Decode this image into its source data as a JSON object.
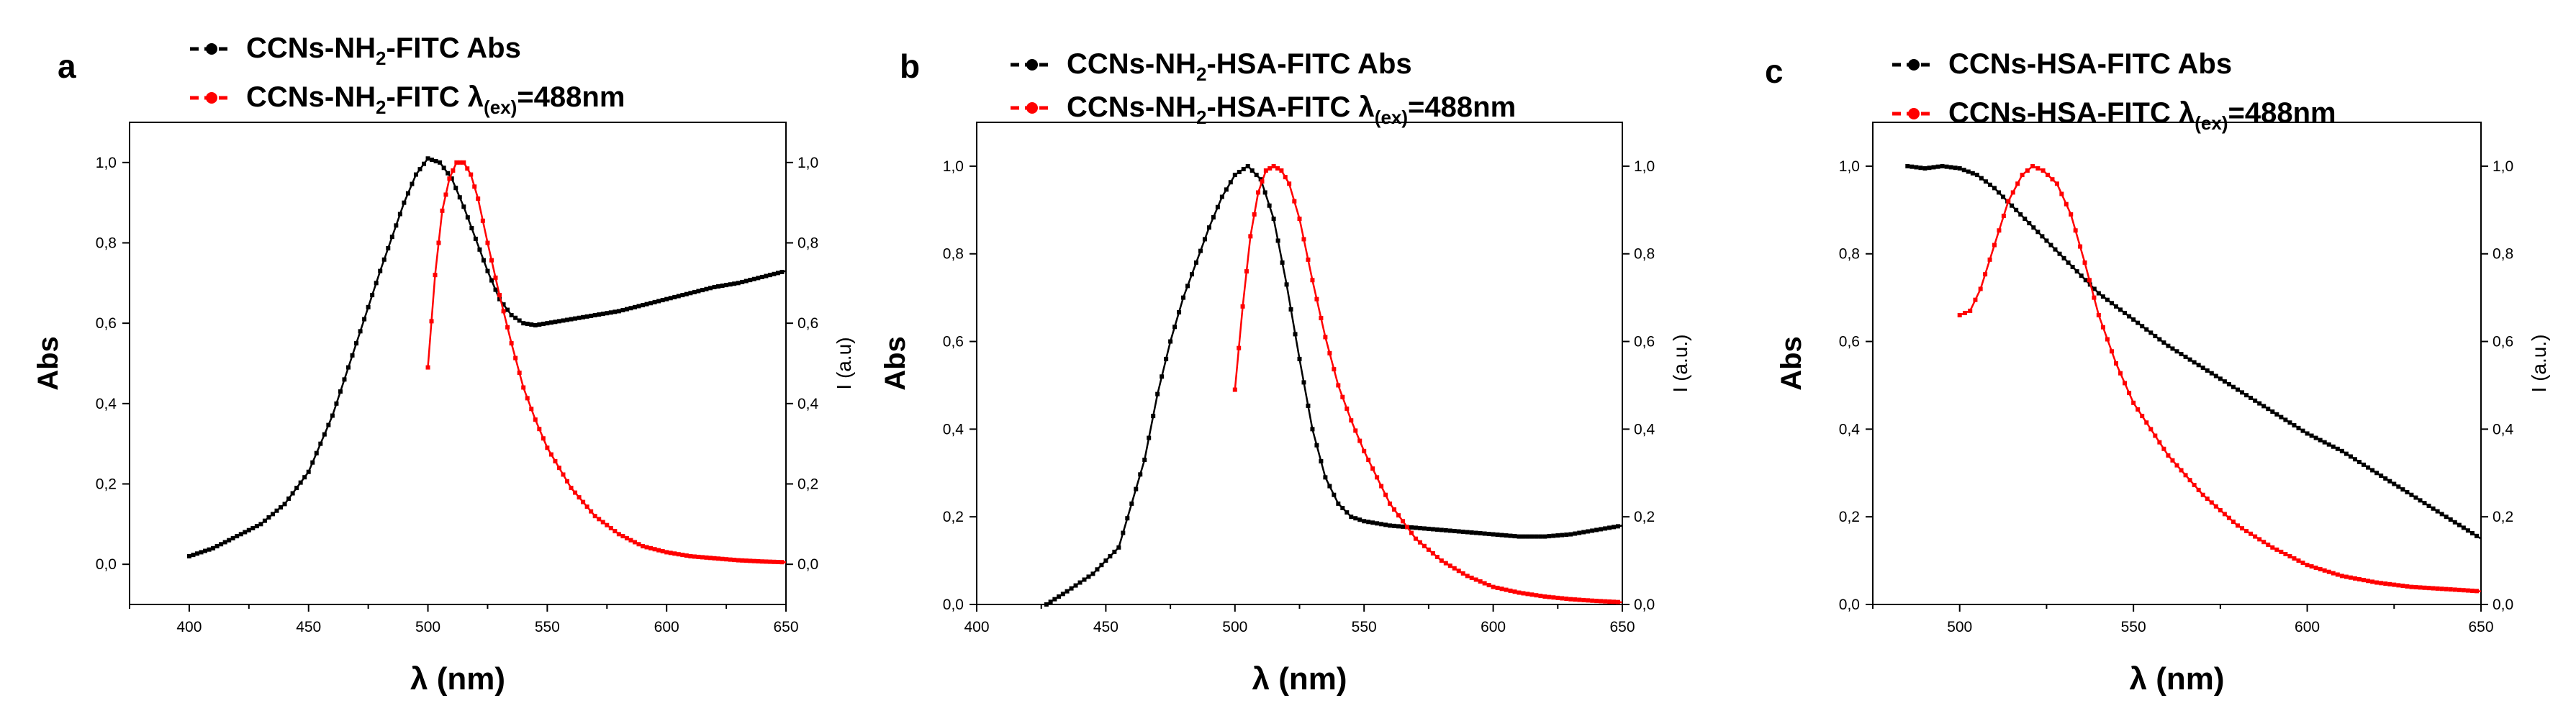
{
  "chart_data": [
    {
      "panel": "a",
      "type": "line",
      "xlabel": "λ (nm)",
      "ylabel": "Abs",
      "y2label": "I (a.u)",
      "xlim": [
        375,
        650
      ],
      "ylim": [
        -0.1,
        1.1
      ],
      "y2lim": [
        -0.1,
        1.1
      ],
      "xticks": [
        400,
        450,
        500,
        550,
        600,
        650
      ],
      "yticks": [
        "0,0",
        "0,2",
        "0,4",
        "0,6",
        "0,8",
        "1,0"
      ],
      "y2ticks": [
        "0,0",
        "0,2",
        "0,4",
        "0,6",
        "0,8",
        "1,0"
      ],
      "series": [
        {
          "name": "CCNs-NH2-FITC Abs",
          "label_main": "CCNs-NH",
          "label_sub": "2",
          "label_rest": "-FITC Abs",
          "color": "#000000",
          "x": [
            400,
            410,
            420,
            430,
            440,
            450,
            460,
            470,
            480,
            490,
            495,
            500,
            505,
            510,
            515,
            520,
            525,
            530,
            535,
            540,
            545,
            550,
            560,
            570,
            580,
            590,
            600,
            610,
            620,
            630,
            640,
            650
          ],
          "y": [
            0.02,
            0.04,
            0.07,
            0.1,
            0.15,
            0.23,
            0.37,
            0.55,
            0.73,
            0.9,
            0.97,
            1.01,
            1.0,
            0.96,
            0.89,
            0.81,
            0.73,
            0.66,
            0.62,
            0.6,
            0.595,
            0.6,
            0.61,
            0.62,
            0.63,
            0.645,
            0.66,
            0.675,
            0.69,
            0.7,
            0.715,
            0.73
          ]
        },
        {
          "name": "CCNs-NH2-FITC λ(ex)=488nm",
          "label_main": "CCNs-NH",
          "label_sub": "2",
          "label_rest": "-FITC ",
          "label_lambda": "λ",
          "label_lambda_sub": "(ex)",
          "label_tail": "=488nm",
          "color": "#ff0000",
          "x": [
            500,
            503,
            506,
            509,
            512,
            515,
            518,
            521,
            525,
            530,
            535,
            540,
            545,
            550,
            555,
            560,
            570,
            580,
            590,
            600,
            610,
            620,
            630,
            640,
            650
          ],
          "y": [
            0.49,
            0.72,
            0.88,
            0.96,
            1.0,
            1.0,
            0.97,
            0.91,
            0.8,
            0.67,
            0.55,
            0.44,
            0.36,
            0.29,
            0.24,
            0.19,
            0.12,
            0.075,
            0.045,
            0.03,
            0.02,
            0.015,
            0.01,
            0.007,
            0.005
          ]
        }
      ]
    },
    {
      "panel": "b",
      "type": "line",
      "xlabel": "λ (nm)",
      "ylabel": "Abs",
      "y2label": "I (a.u.)",
      "xlim": [
        400,
        650
      ],
      "ylim": [
        0.0,
        1.1
      ],
      "y2lim": [
        0.0,
        1.1
      ],
      "xticks": [
        400,
        450,
        500,
        550,
        600,
        650
      ],
      "yticks": [
        "0,0",
        "0,2",
        "0,4",
        "0,6",
        "0,8",
        "1,0"
      ],
      "y2ticks": [
        "0,0",
        "0,2",
        "0,4",
        "0,6",
        "0,8",
        "1,0"
      ],
      "series": [
        {
          "name": "CCNs-NH2-HSA-FITC Abs",
          "label_main": "CCNs-NH",
          "label_sub": "2",
          "label_rest": "-HSA-FITC Abs",
          "color": "#000000",
          "x": [
            427,
            435,
            445,
            455,
            465,
            470,
            475,
            480,
            485,
            490,
            495,
            500,
            505,
            510,
            515,
            520,
            525,
            530,
            535,
            540,
            545,
            550,
            560,
            570,
            580,
            590,
            600,
            610,
            620,
            630,
            640,
            650
          ],
          "y": [
            0.0,
            0.03,
            0.07,
            0.13,
            0.33,
            0.48,
            0.6,
            0.7,
            0.78,
            0.86,
            0.93,
            0.98,
            1.0,
            0.97,
            0.88,
            0.73,
            0.56,
            0.4,
            0.29,
            0.23,
            0.2,
            0.19,
            0.18,
            0.175,
            0.17,
            0.165,
            0.16,
            0.155,
            0.155,
            0.16,
            0.17,
            0.18
          ]
        },
        {
          "name": "CCNs-NH2-HSA-FITC λ(ex)=488nm",
          "label_main": "CCNs-NH",
          "label_sub": "2",
          "label_rest": "-HSA-FITC ",
          "label_lambda": "λ",
          "label_lambda_sub": "(ex)",
          "label_tail": "=488nm",
          "color": "#ff0000",
          "x": [
            500,
            503,
            506,
            509,
            512,
            515,
            518,
            521,
            525,
            530,
            535,
            540,
            545,
            550,
            555,
            560,
            570,
            580,
            590,
            600,
            610,
            620,
            630,
            640,
            650
          ],
          "y": [
            0.49,
            0.68,
            0.84,
            0.94,
            0.99,
            1.0,
            0.99,
            0.96,
            0.88,
            0.74,
            0.61,
            0.5,
            0.42,
            0.35,
            0.29,
            0.23,
            0.15,
            0.1,
            0.065,
            0.04,
            0.027,
            0.018,
            0.012,
            0.008,
            0.005
          ]
        }
      ]
    },
    {
      "panel": "c",
      "type": "line",
      "xlabel": "λ (nm)",
      "ylabel": "Abs",
      "y2label": "I (a.u.)",
      "xlim": [
        475,
        650
      ],
      "ylim": [
        0.0,
        1.1
      ],
      "y2lim": [
        0.0,
        1.1
      ],
      "xticks": [
        500,
        550,
        600,
        650
      ],
      "yticks": [
        "0,0",
        "0,2",
        "0,4",
        "0,6",
        "0,8",
        "1,0"
      ],
      "y2ticks": [
        "0,0",
        "0,2",
        "0,4",
        "0,6",
        "0,8",
        "1,0"
      ],
      "series": [
        {
          "name": "CCNs-HSA-FITC Abs",
          "label_main": "CCNs-HSA-FITC Abs",
          "color": "#000000",
          "x": [
            485,
            490,
            495,
            500,
            505,
            510,
            515,
            520,
            525,
            530,
            540,
            550,
            560,
            570,
            580,
            590,
            600,
            610,
            620,
            630,
            640,
            650
          ],
          "y": [
            1.0,
            0.995,
            1.0,
            0.995,
            0.98,
            0.95,
            0.91,
            0.87,
            0.83,
            0.79,
            0.71,
            0.65,
            0.59,
            0.54,
            0.49,
            0.44,
            0.39,
            0.35,
            0.3,
            0.25,
            0.2,
            0.15
          ]
        },
        {
          "name": "CCNs-HSA-FITC λ(ex)=488nm",
          "label_main": "CCNs-HSA-FITC ",
          "label_lambda": "λ",
          "label_lambda_sub": "(ex)",
          "label_tail": "=488nm",
          "color": "#ff0000",
          "x": [
            500,
            503,
            506,
            510,
            514,
            518,
            521,
            524,
            528,
            532,
            536,
            540,
            545,
            550,
            560,
            570,
            580,
            590,
            600,
            610,
            620,
            630,
            640,
            650
          ],
          "y": [
            0.66,
            0.67,
            0.72,
            0.82,
            0.92,
            0.98,
            1.0,
            0.99,
            0.96,
            0.89,
            0.78,
            0.66,
            0.55,
            0.46,
            0.34,
            0.25,
            0.18,
            0.13,
            0.09,
            0.065,
            0.05,
            0.04,
            0.035,
            0.03
          ]
        }
      ]
    }
  ]
}
